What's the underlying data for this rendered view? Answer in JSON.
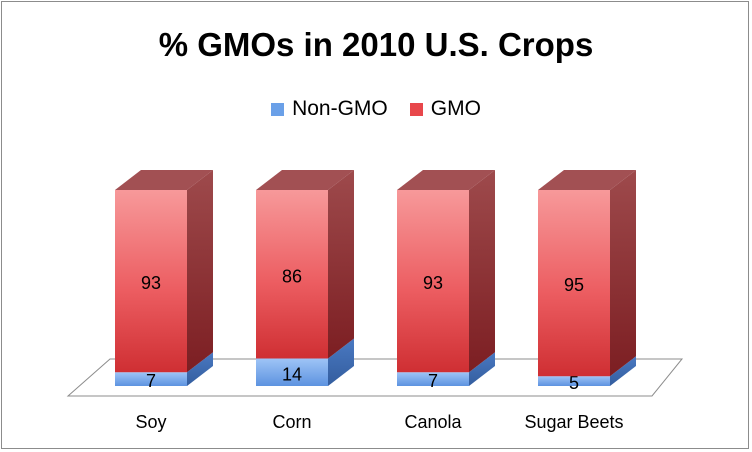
{
  "chart_data": {
    "type": "bar",
    "stacked": true,
    "three_d": true,
    "title": "% GMOs in 2010 U.S. Crops",
    "legend_position": "top",
    "categories": [
      "Soy",
      "Corn",
      "Canola",
      "Sugar Beets"
    ],
    "series": [
      {
        "name": "Non-GMO",
        "values": [
          7,
          14,
          7,
          5
        ],
        "color": "#6aa0e8"
      },
      {
        "name": "GMO",
        "values": [
          93,
          86,
          93,
          95
        ],
        "color": "#e8474b"
      }
    ],
    "ylim": [
      0,
      100
    ],
    "grid": false
  }
}
